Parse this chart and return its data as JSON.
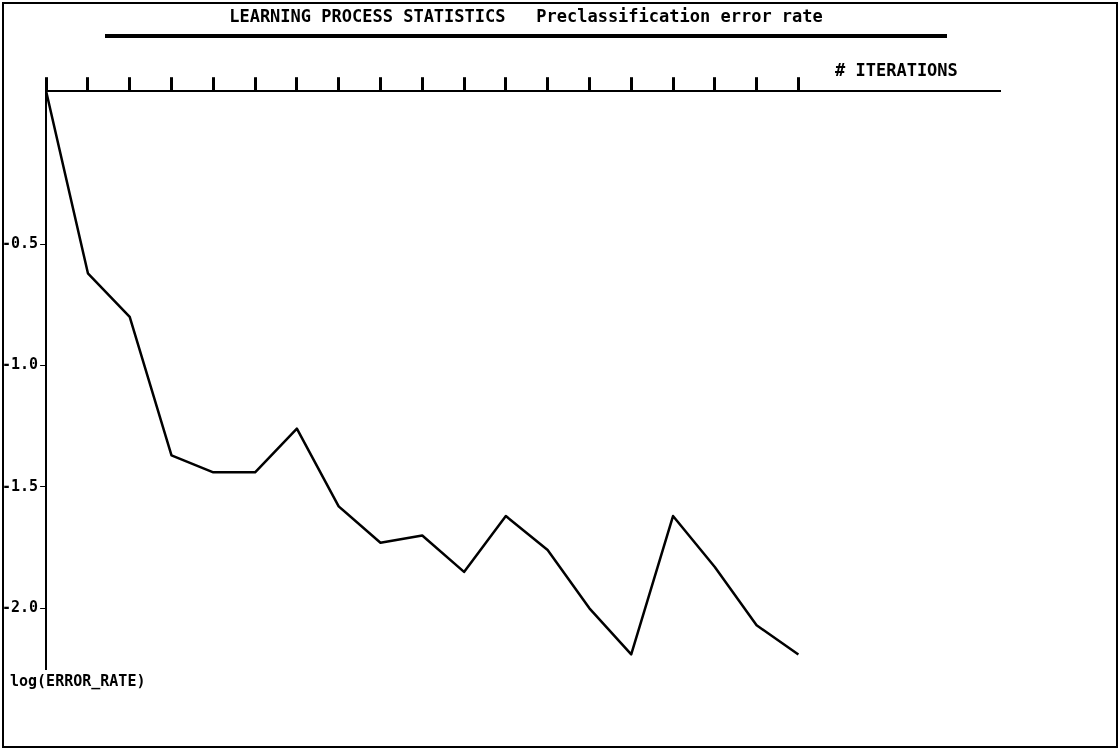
{
  "chart_data": {
    "type": "line",
    "title": "LEARNING PROCESS STATISTICS",
    "subtitle": "Preclassification error rate",
    "xlabel": "# ITERATIONS",
    "ylabel": "log(ERROR_RATE)",
    "categories": [
      null,
      null,
      null,
      null,
      null,
      null,
      null,
      null,
      null,
      null,
      null,
      null,
      null,
      null,
      null,
      null,
      null,
      null,
      null
    ],
    "values": [
      0.13,
      -0.62,
      -0.8,
      -1.37,
      -1.44,
      -1.44,
      -1.26,
      -1.58,
      -1.73,
      -1.7,
      -1.85,
      -1.62,
      -1.76,
      -2.0,
      -2.19,
      -1.62,
      -1.83,
      -2.07,
      -2.19
    ],
    "color": "#000000",
    "ylim": [
      -2.25,
      0.13
    ],
    "yticks": [
      -0.5,
      {
        "value": -1,
        "label": "-1.0"
      },
      -1.5,
      {
        "value": -2,
        "label": "-2.0"
      }
    ],
    "grid": false,
    "legend": false,
    "marker": "none",
    "line_style": "solid"
  }
}
